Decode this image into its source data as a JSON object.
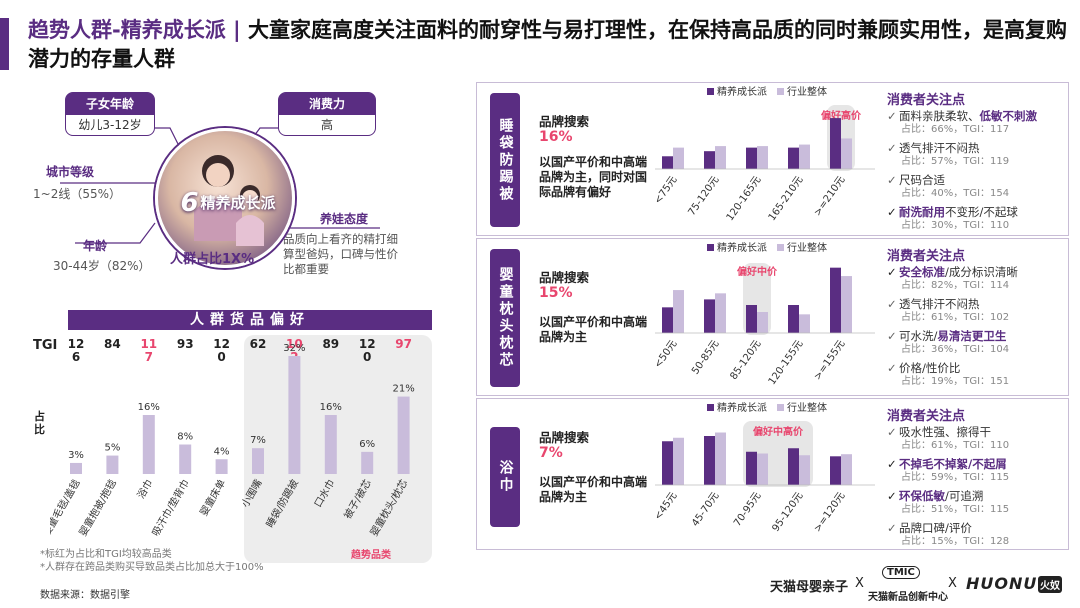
{
  "header": {
    "title_highlight": "趋势人群-精养成长派 | ",
    "title_rest": "大童家庭高度关注面料的耐穿性与易打理性，在保持高品质的同时兼顾实用性，是高复购潜力的存量人群"
  },
  "profile": {
    "child_age": {
      "label": "子女年龄",
      "value": "幼儿3-12岁"
    },
    "spending": {
      "label": "消费力",
      "value": "高"
    },
    "city": {
      "label": "城市等级",
      "value": "1~2线（55%）"
    },
    "age": {
      "label": "年龄",
      "value": "30-44岁（82%）"
    },
    "attitude": {
      "label": "养娃态度",
      "value": "品质向上看齐的精打细算型爸妈，口碑与性价比都重要"
    },
    "persona_num": "6",
    "persona_name": "精养成长派",
    "share": "人群占比1X%"
  },
  "goods_pref": {
    "title": "人群货品偏好",
    "tgi_label": "TGI",
    "y_label": "占比",
    "trend_label": "趋势品类",
    "footnote1": "*标红为占比和TGI均较高品类",
    "footnote2": "*人群存在跨品类购买导致品类占比加总大于100%",
    "source": "数据来源：数据引擎"
  },
  "chart_data": [
    {
      "type": "bar",
      "title": "人群货品偏好",
      "ylabel": "占比",
      "ylim": [
        0,
        35
      ],
      "categories": [
        "婴童毛毯/盖毯",
        "婴童抱被/抱毯",
        "浴巾",
        "吸汗巾/垫背巾",
        "婴童床单",
        "小围嘴",
        "睡袋/防踢被",
        "口水巾",
        "被子/被芯",
        "婴童枕头/枕芯"
      ],
      "values": [
        3,
        5,
        16,
        8,
        4,
        7,
        32,
        16,
        6,
        21
      ],
      "value_labels": [
        "3%",
        "5%",
        "16%",
        "8%",
        "4%",
        "7%",
        "32%",
        "16%",
        "6%",
        "21%"
      ],
      "tgi": [
        "126",
        "84",
        "117",
        "93",
        "120",
        "62",
        "102",
        "89",
        "120",
        "97"
      ],
      "highlighted": [
        false,
        false,
        true,
        false,
        false,
        false,
        true,
        false,
        false,
        true
      ]
    },
    {
      "type": "bar",
      "panel": "睡袋/防踢被",
      "legend": [
        "精养成长派",
        "行业整体"
      ],
      "categories": [
        "<75元",
        "75-120元",
        "120-165元",
        "165-210元",
        ">=210元"
      ],
      "series": [
        {
          "name": "精养成长派",
          "values": [
            2.5,
            3.5,
            4.2,
            4.2,
            10
          ]
        },
        {
          "name": "行业整体",
          "values": [
            4.2,
            4.5,
            4.5,
            4.8,
            6
          ]
        }
      ],
      "ylim": [
        0,
        11
      ],
      "highlight": {
        "index": 4,
        "label": "偏好高价"
      }
    },
    {
      "type": "bar",
      "panel": "婴童枕头/枕芯",
      "legend": [
        "精养成长派",
        "行业整体"
      ],
      "categories": [
        "<50元",
        "50-85元",
        "85-120元",
        "120-155元",
        ">=155元"
      ],
      "series": [
        {
          "name": "精养成长派",
          "values": [
            5.5,
            7.2,
            6,
            6,
            14
          ]
        },
        {
          "name": "行业整体",
          "values": [
            9.2,
            8.5,
            4.5,
            4,
            12.2
          ]
        }
      ],
      "ylim": [
        0,
        15
      ],
      "highlight": {
        "index": 2,
        "label": "偏好中价"
      }
    },
    {
      "type": "bar",
      "panel": "浴巾",
      "legend": [
        "精养成长派",
        "行业整体"
      ],
      "categories": [
        "<45元",
        "45-70元",
        "70-95元",
        "95-120元",
        ">=120元"
      ],
      "series": [
        {
          "name": "精养成长派",
          "values": [
            12.5,
            14,
            9.5,
            10.5,
            8.2
          ]
        },
        {
          "name": "行业整体",
          "values": [
            13.5,
            15,
            9,
            8.5,
            8.8
          ]
        }
      ],
      "ylim": [
        0,
        16
      ],
      "highlight": {
        "range": [
          2,
          3
        ],
        "label": "偏好中高价"
      }
    }
  ],
  "panels": [
    {
      "side_label": "睡袋防踢被",
      "search_label": "品牌搜索",
      "search_pct": "16%",
      "desc": "以国产平价和中高端品牌为主，同时对国际品牌有偏好",
      "concern_title": "消费者关注点",
      "concerns": [
        {
          "pre": "面料亲肤柔软、",
          "em": "低敏不刺激",
          "stat": "占比：66%，TGI：117",
          "bold_check": false
        },
        {
          "pre": "透气排汗不闷热",
          "em": "",
          "stat": "占比：57%，TGI：119",
          "bold_check": false
        },
        {
          "pre": "尺码合适",
          "em": "",
          "stat": "占比：40%，TGI：154",
          "bold_check": false
        },
        {
          "pre": "",
          "em": "耐洗耐用",
          "post": "不变形/不起球",
          "stat": "占比：30%，TGI：110",
          "bold_check": true
        }
      ]
    },
    {
      "side_label": "婴童枕头枕芯",
      "search_label": "品牌搜索",
      "search_pct": "15%",
      "desc": "以国产平价和中高端品牌为主",
      "concern_title": "消费者关注点",
      "concerns": [
        {
          "pre": "",
          "em": "安全标准",
          "post": "/成分标识清晰",
          "stat": "占比：82%，TGI：114",
          "bold_check": true
        },
        {
          "pre": "透气排汗不闷热",
          "em": "",
          "stat": "占比：61%，TGI：102",
          "bold_check": false
        },
        {
          "pre": "可水洗/",
          "em": "易清洁更卫生",
          "stat": "占比：36%，TGI：104",
          "bold_check": false
        },
        {
          "pre": "价格/性价比",
          "em": "",
          "stat": "占比：19%，TGI：151",
          "bold_check": false
        }
      ]
    },
    {
      "side_label": "浴巾",
      "search_label": "品牌搜索",
      "search_pct": "7%",
      "desc": "以国产平价和中高端品牌为主",
      "concern_title": "消费者关注点",
      "concerns": [
        {
          "pre": "吸水性强、擦得干",
          "em": "",
          "stat": "占比：61%，TGI：110",
          "bold_check": false
        },
        {
          "pre": "",
          "em": "不掉毛不掉絮/不起屑",
          "stat": "占比：59%，TGI：115",
          "bold_check": true
        },
        {
          "pre": "",
          "em": "环保低敏",
          "post": "/可追溯",
          "stat": "占比：51%，TGI：115",
          "bold_check": true
        },
        {
          "pre": "品牌口碑/评价",
          "em": "",
          "stat": "占比：15%，TGI：128",
          "bold_check": false
        }
      ]
    }
  ],
  "logos": {
    "tmall": "天猫母婴亲子",
    "tmic_badge": "TMIC",
    "tmic": "天猫新品创新中心",
    "huonu": "HUONU",
    "huonu_cn": "火奴",
    "sep": "X"
  },
  "colors": {
    "primary": "#5a2d82",
    "light": "#c9bcdb",
    "red": "#e8466e"
  }
}
